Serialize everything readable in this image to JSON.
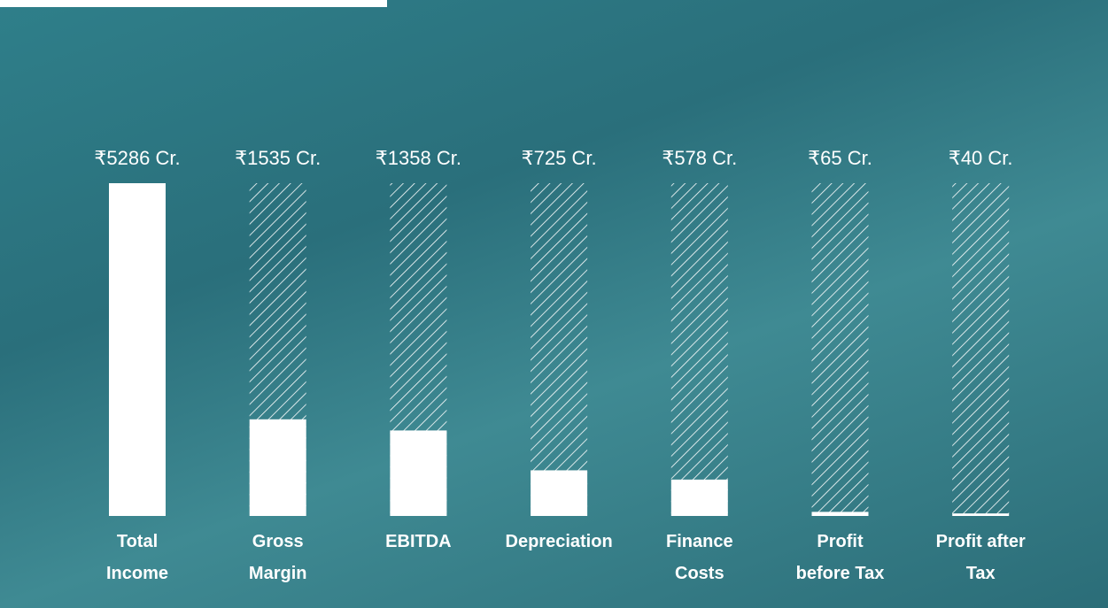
{
  "chart_data": {
    "type": "bar",
    "categories": [
      "Total Income",
      "Gross Margin",
      "EBITDA",
      "Depreciation",
      "Finance Costs",
      "Profit before Tax",
      "Profit after Tax"
    ],
    "values": [
      5286,
      1535,
      1358,
      725,
      578,
      65,
      40
    ],
    "value_labels": [
      "₹5286 Cr.",
      "₹1535 Cr.",
      "₹1358 Cr.",
      "₹725 Cr.",
      "₹578 Cr.",
      "₹65 Cr.",
      "₹40 Cr."
    ],
    "color": "#ffffff",
    "ylim": [
      0,
      5286
    ]
  }
}
